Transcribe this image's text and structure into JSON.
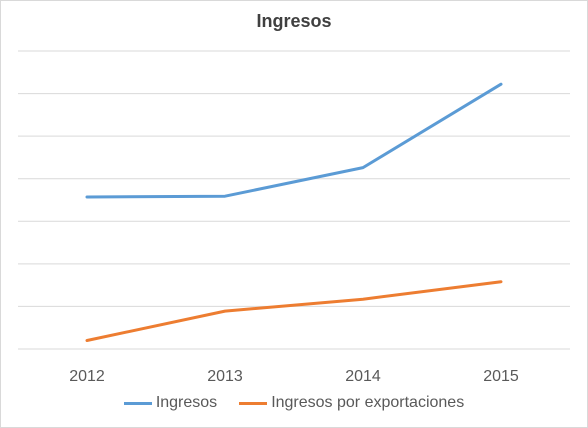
{
  "chart_data": {
    "type": "line",
    "title": "Ingresos",
    "xlabel": "",
    "ylabel": "",
    "categories": [
      "2012",
      "2013",
      "2014",
      "2015"
    ],
    "series": [
      {
        "name": "Ingresos",
        "color": "#5b9bd5",
        "values": [
          0.357,
          0.359,
          0.426,
          0.622
        ]
      },
      {
        "name": "Ingresos por exportaciones",
        "color": "#ed7d31",
        "values": [
          0.02,
          0.089,
          0.117,
          0.158
        ]
      }
    ],
    "ylim": [
      0,
      0.7
    ],
    "y_tick_labels_shown": false,
    "grid": true,
    "legend_position": "bottom"
  }
}
